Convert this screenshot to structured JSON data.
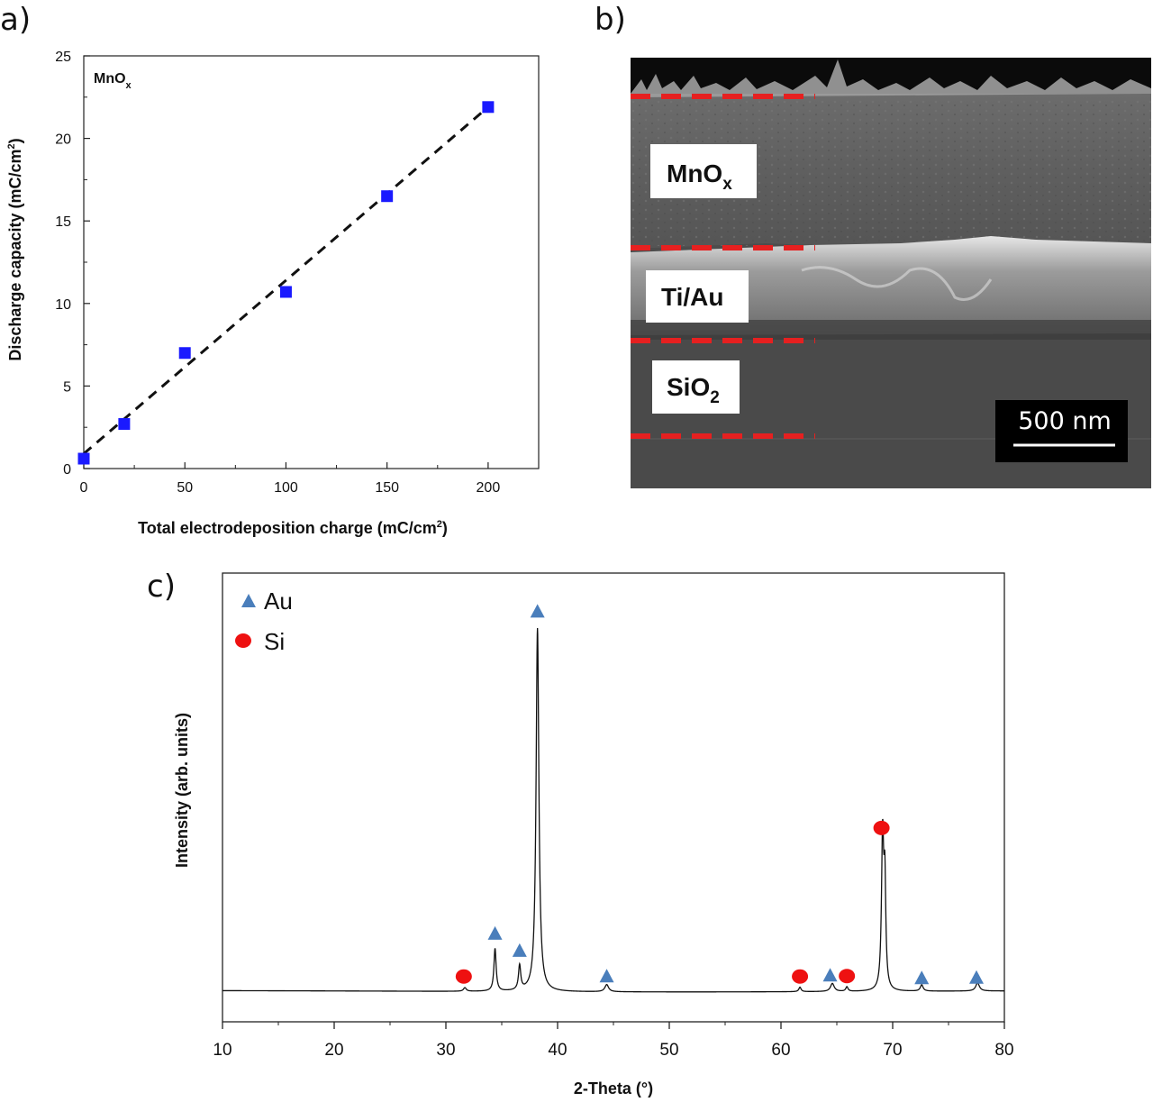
{
  "panels": {
    "a": "a)",
    "b": "b)",
    "c": "c)"
  },
  "chart_data": [
    {
      "id": "a",
      "type": "scatter",
      "inset_label": "MnO",
      "inset_label_sub": "x",
      "xlabel": "Total electrodeposition charge (mC/cm",
      "xlabel_sup": "2",
      "xlabel_end": ")",
      "ylabel": "Discharge capacity (mC/cm",
      "ylabel_sup": "2",
      "ylabel_end": ")",
      "xlim": [
        0,
        225
      ],
      "ylim": [
        0,
        25
      ],
      "xticks": [
        0,
        50,
        100,
        150,
        200
      ],
      "yticks": [
        0,
        5,
        10,
        15,
        20,
        25
      ],
      "x": [
        0,
        20,
        50,
        100,
        150,
        200
      ],
      "y": [
        0.6,
        2.7,
        7.0,
        10.7,
        16.5,
        21.9
      ],
      "fit": {
        "x": [
          0,
          200
        ],
        "y": [
          0.9,
          21.9
        ],
        "style": "dashed"
      },
      "marker_color": "#1a1aff"
    },
    {
      "id": "c",
      "type": "line",
      "xlabel": "2-Theta (°)",
      "ylabel": "Intensity (arb. units)",
      "xlim": [
        10,
        80
      ],
      "ylim": [
        0,
        100
      ],
      "xticks": [
        10,
        20,
        30,
        40,
        50,
        60,
        70,
        80
      ],
      "baseline": 7.0,
      "peaks": [
        {
          "x": 31.7,
          "h": 0.8,
          "w": 0.15
        },
        {
          "x": 34.4,
          "h": 9.5,
          "w": 0.12
        },
        {
          "x": 36.6,
          "h": 5.5,
          "w": 0.12
        },
        {
          "x": 38.2,
          "h": 81.0,
          "w": 0.15
        },
        {
          "x": 44.4,
          "h": 1.6,
          "w": 0.2
        },
        {
          "x": 61.7,
          "h": 1.0,
          "w": 0.12
        },
        {
          "x": 64.6,
          "h": 1.8,
          "w": 0.2
        },
        {
          "x": 65.9,
          "h": 1.0,
          "w": 0.12
        },
        {
          "x": 69.1,
          "h": 34.0,
          "w": 0.12
        },
        {
          "x": 69.3,
          "h": 22.0,
          "w": 0.1
        },
        {
          "x": 72.6,
          "h": 1.4,
          "w": 0.15
        },
        {
          "x": 77.6,
          "h": 1.8,
          "w": 0.2
        }
      ],
      "legend": [
        {
          "name": "Au",
          "marker": "triangle",
          "color": "#4a7ebb"
        },
        {
          "name": "Si",
          "marker": "circle",
          "color": "#ee1111"
        }
      ],
      "markers": [
        {
          "series": "Si",
          "x": 31.6,
          "y": 10.1
        },
        {
          "series": "Au",
          "x": 34.4,
          "y": 19.7
        },
        {
          "series": "Au",
          "x": 36.6,
          "y": 15.9
        },
        {
          "series": "Au",
          "x": 38.2,
          "y": 91.5
        },
        {
          "series": "Au",
          "x": 44.4,
          "y": 10.2
        },
        {
          "series": "Si",
          "x": 61.7,
          "y": 10.1
        },
        {
          "series": "Au",
          "x": 64.4,
          "y": 10.4
        },
        {
          "series": "Si",
          "x": 65.9,
          "y": 10.2
        },
        {
          "series": "Si",
          "x": 69.0,
          "y": 43.2
        },
        {
          "series": "Au",
          "x": 72.6,
          "y": 9.8
        },
        {
          "series": "Au",
          "x": 77.5,
          "y": 9.9
        }
      ]
    }
  ],
  "sem_image": {
    "layers": [
      {
        "name": "MnO",
        "sub": "x"
      },
      {
        "name": "Ti/Au",
        "sub": ""
      },
      {
        "name": "SiO",
        "sub": "2"
      }
    ],
    "scale_bar": "500 nm",
    "boundary_color": "#e62020"
  }
}
